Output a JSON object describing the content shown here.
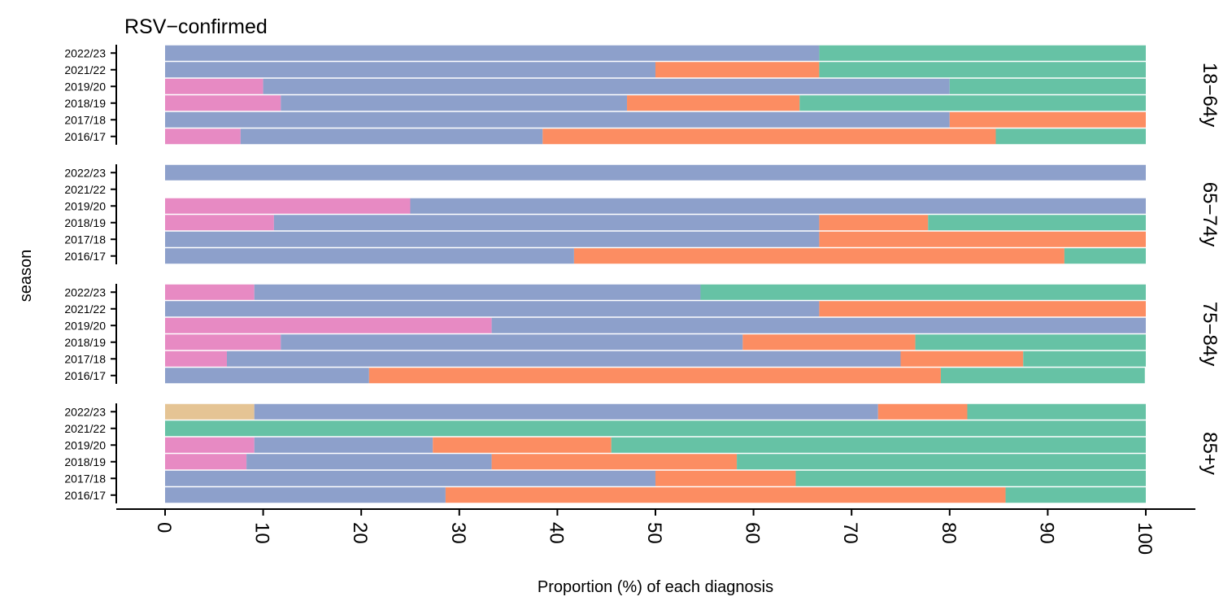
{
  "chart_data": {
    "type": "bar",
    "orientation": "horizontal",
    "stacked": true,
    "title": "RSV−confirmed",
    "xlabel": "Proportion (%) of each diagnosis",
    "ylabel": "season",
    "xlim": [
      0,
      100
    ],
    "x_ticks": [
      "0",
      "10",
      "20",
      "30",
      "40",
      "50",
      "60",
      "70",
      "80",
      "90",
      "100"
    ],
    "grid": false,
    "legend": "none",
    "segment_colors": [
      "#e5c494",
      "#e78ac3",
      "#8da0cb",
      "#fc8d62",
      "#66c2a5"
    ],
    "categories": [
      "2022/23",
      "2021/22",
      "2019/20",
      "2018/19",
      "2017/18",
      "2016/17"
    ],
    "panels": [
      {
        "label": "18−64y",
        "rows": [
          {
            "season": "2022/23",
            "segments": [
              0,
              0,
              66.7,
              0,
              33.3
            ]
          },
          {
            "season": "2021/22",
            "segments": [
              0,
              0,
              50.0,
              16.7,
              33.3
            ]
          },
          {
            "season": "2019/20",
            "segments": [
              0,
              10.0,
              70.0,
              0,
              20.0
            ]
          },
          {
            "season": "2018/19",
            "segments": [
              0,
              11.8,
              35.3,
              17.6,
              35.3
            ]
          },
          {
            "season": "2017/18",
            "segments": [
              0,
              0,
              80.0,
              20.0,
              0
            ]
          },
          {
            "season": "2016/17",
            "segments": [
              0,
              7.7,
              30.8,
              46.2,
              15.3
            ]
          }
        ]
      },
      {
        "label": "65−74y",
        "rows": [
          {
            "season": "2022/23",
            "segments": [
              0,
              0,
              100.0,
              0,
              0
            ]
          },
          {
            "season": "2021/22",
            "segments": [
              0,
              0,
              0,
              0,
              0
            ]
          },
          {
            "season": "2019/20",
            "segments": [
              0,
              25.0,
              75.0,
              0,
              0
            ]
          },
          {
            "season": "2018/19",
            "segments": [
              0,
              11.1,
              55.6,
              11.1,
              22.2
            ]
          },
          {
            "season": "2017/18",
            "segments": [
              0,
              0,
              66.7,
              33.3,
              0
            ]
          },
          {
            "season": "2016/17",
            "segments": [
              0,
              0,
              41.7,
              50.0,
              8.3
            ]
          }
        ]
      },
      {
        "label": "75−84y",
        "rows": [
          {
            "season": "2022/23",
            "segments": [
              0,
              9.1,
              45.5,
              0,
              45.4
            ]
          },
          {
            "season": "2021/22",
            "segments": [
              0,
              0,
              66.7,
              33.3,
              0
            ]
          },
          {
            "season": "2019/20",
            "segments": [
              0,
              33.3,
              66.7,
              0,
              0
            ]
          },
          {
            "season": "2018/19",
            "segments": [
              0,
              11.8,
              47.1,
              17.6,
              23.5
            ]
          },
          {
            "season": "2017/18",
            "segments": [
              0,
              6.3,
              68.7,
              12.5,
              12.5
            ]
          },
          {
            "season": "2016/17",
            "segments": [
              0,
              0,
              20.8,
              58.3,
              20.8
            ]
          }
        ]
      },
      {
        "label": "85+y",
        "rows": [
          {
            "season": "2022/23",
            "segments": [
              9.1,
              0,
              63.6,
              9.1,
              18.2
            ]
          },
          {
            "season": "2021/22",
            "segments": [
              0,
              0,
              0,
              0,
              100.0
            ]
          },
          {
            "season": "2019/20",
            "segments": [
              0,
              9.1,
              18.2,
              18.2,
              54.5
            ]
          },
          {
            "season": "2018/19",
            "segments": [
              0,
              8.3,
              25.0,
              25.0,
              41.7
            ]
          },
          {
            "season": "2017/18",
            "segments": [
              0,
              0,
              50.0,
              14.3,
              35.7
            ]
          },
          {
            "season": "2016/17",
            "segments": [
              0,
              0,
              28.6,
              57.1,
              14.3
            ]
          }
        ]
      }
    ]
  }
}
